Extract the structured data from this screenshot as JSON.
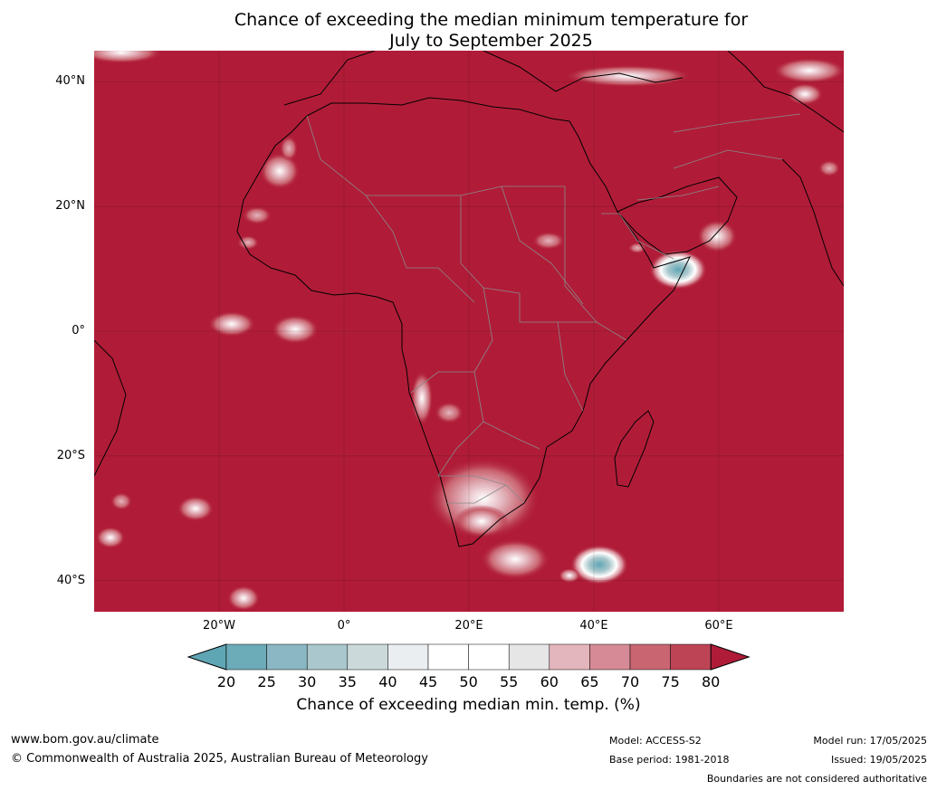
{
  "title": {
    "line1": "Chance of exceeding the median minimum temperature for",
    "line2": "July to September 2025"
  },
  "map": {
    "projection": "equirectangular",
    "lon_range": [
      -40,
      80
    ],
    "lat_range": [
      -45,
      45
    ],
    "background_color": "#b01c38",
    "gridlines": true,
    "lat_labels": [
      {
        "text": "40°N",
        "lat": 40
      },
      {
        "text": "20°N",
        "lat": 20
      },
      {
        "text": "0°",
        "lat": 0
      },
      {
        "text": "20°S",
        "lat": -20
      },
      {
        "text": "40°S",
        "lat": -40
      }
    ],
    "lon_labels": [
      {
        "text": "20°W",
        "lon": -20
      },
      {
        "text": "0°",
        "lon": 0
      },
      {
        "text": "20°E",
        "lon": 20
      },
      {
        "text": "40°E",
        "lon": 40
      },
      {
        "text": "60°E",
        "lon": 60
      }
    ]
  },
  "colorbar": {
    "ticks": [
      "20",
      "25",
      "30",
      "35",
      "40",
      "45",
      "50",
      "55",
      "60",
      "65",
      "70",
      "75",
      "80"
    ],
    "colors": [
      "#5fa6b5",
      "#6cabb8",
      "#8ab7c3",
      "#a9c7cc",
      "#ccd9da",
      "#eaeef0",
      "#ffffff",
      "#ffffff",
      "#e6e6e6",
      "#e3b5bd",
      "#d68a95",
      "#c96571",
      "#bd4455",
      "#b01c38"
    ],
    "label": "Chance of exceeding median min. temp. (%)"
  },
  "footer": {
    "website": "www.bom.gov.au/climate",
    "copyright": "© Commonwealth of Australia 2025, Australian Bureau of Meteorology",
    "model": "Model: ACCESS-S2",
    "base_period": "Base period: 1981-2018",
    "model_run": "Model run: 17/05/2025",
    "issued": "Issued: 19/05/2025",
    "disclaimer": "Boundaries are not considered authoritative"
  }
}
